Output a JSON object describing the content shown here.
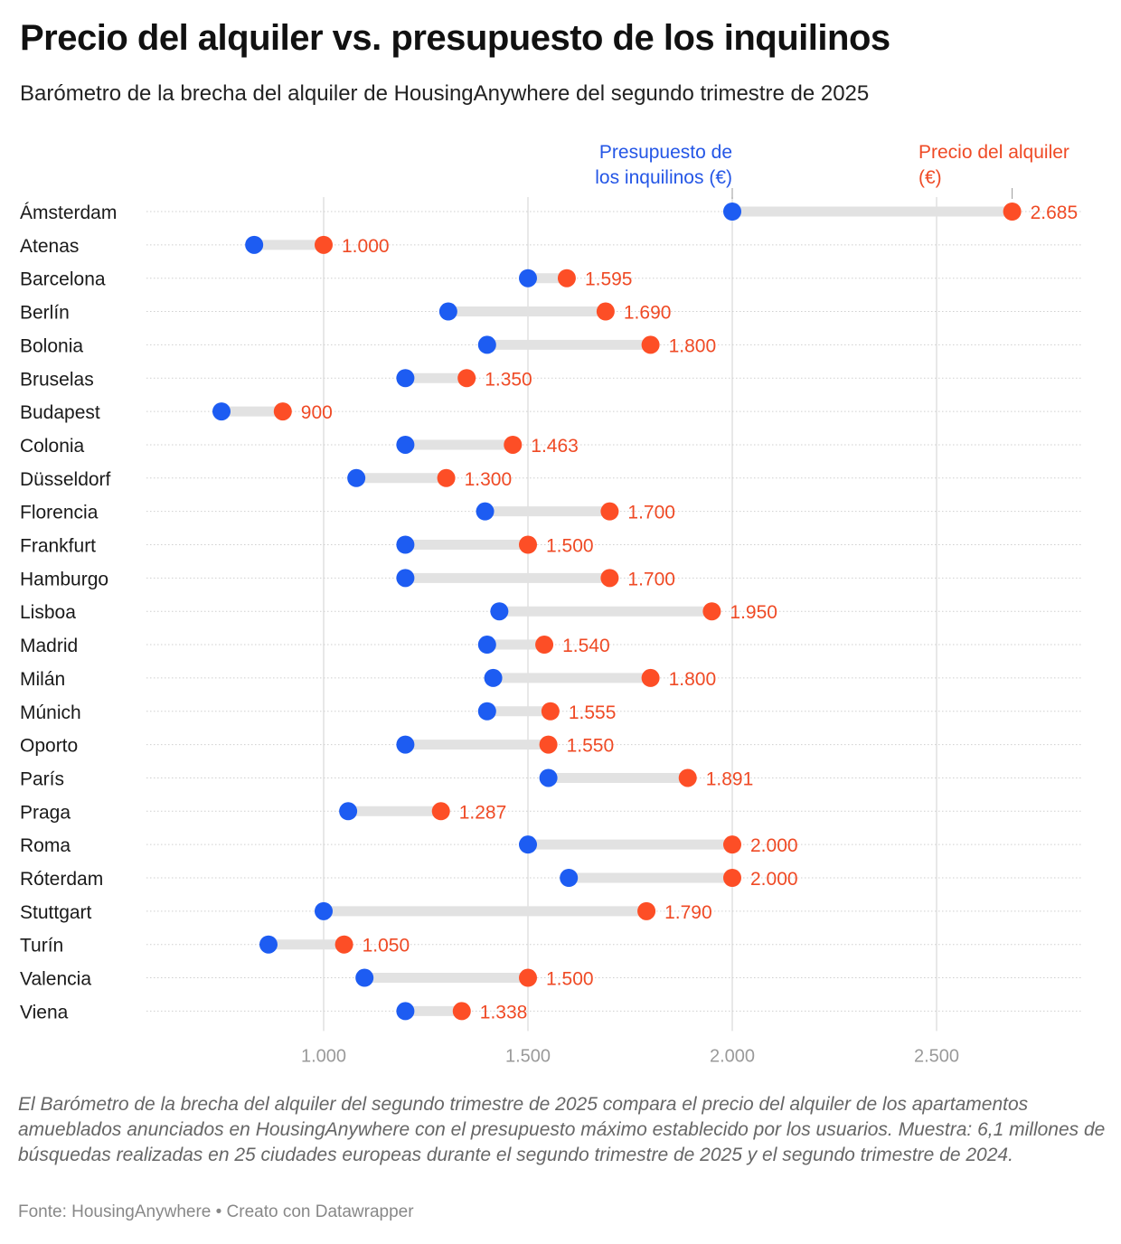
{
  "header": {
    "title": "Precio del alquiler vs. presupuesto de los inquilinos",
    "subtitle": "Barómetro de la brecha del alquiler de HousingAnywhere del segundo trimestre de 2025"
  },
  "footer": {
    "notes": "El Barómetro de la brecha del alquiler del segundo trimestre de 2025 compara el precio del alquiler de los apartamentos amueblados anunciados en HousingAnywhere con el presupuesto máximo establecido por los usuarios. Muestra: 6,1 millones de búsquedas realizadas en 25 ciudades europeas durante el segundo trimestre de 2025 y el segundo trimestre de 2024.",
    "source": "Fonte: HousingAnywhere • Creato con Datawrapper"
  },
  "colors": {
    "budget": "#1d5cf2",
    "rent": "#fd4e26",
    "rent_label": "#ef4a25",
    "connector": "#e2e2e2"
  },
  "chart_data": {
    "type": "dot-range",
    "title": "Precio del alquiler vs. presupuesto de los inquilinos",
    "subtitle": "Barómetro de la brecha del alquiler de HousingAnywhere del segundo trimestre de 2025",
    "xlabel": "",
    "ylabel": "",
    "xlim": [
      565,
      2865
    ],
    "xticks": [
      1000,
      1500,
      2000,
      2500
    ],
    "xtick_labels": [
      "1.000",
      "1.500",
      "2.000",
      "2.500"
    ],
    "grid": "vertical",
    "legend": [
      {
        "name": "Presupuesto de los inquilinos (€)",
        "lines": [
          "Presupuesto de",
          "los inquilinos (€)"
        ],
        "color": "#1d5cf2",
        "placement": "top, above first row"
      },
      {
        "name": "Precio del alquiler (€)",
        "lines": [
          "Precio del alquiler",
          "(€)"
        ],
        "color": "#fd4e26",
        "placement": "top, above first row"
      }
    ],
    "categories": [
      "Ámsterdam",
      "Atenas",
      "Barcelona",
      "Berlín",
      "Bolonia",
      "Bruselas",
      "Budapest",
      "Colonia",
      "Düsseldorf",
      "Florencia",
      "Frankfurt",
      "Hamburgo",
      "Lisboa",
      "Madrid",
      "Milán",
      "Múnich",
      "Oporto",
      "París",
      "Praga",
      "Roma",
      "Róterdam",
      "Stuttgart",
      "Turín",
      "Valencia",
      "Viena"
    ],
    "series": [
      {
        "name": "Presupuesto de los inquilinos (€)",
        "values": [
          2000,
          830,
          1500,
          1305,
          1400,
          1200,
          750,
          1200,
          1080,
          1395,
          1200,
          1200,
          1430,
          1400,
          1415,
          1400,
          1200,
          1550,
          1060,
          1500,
          1600,
          1000,
          865,
          1100,
          1200
        ]
      },
      {
        "name": "Precio del alquiler (€)",
        "values": [
          2685,
          1000,
          1595,
          1690,
          1800,
          1350,
          900,
          1463,
          1300,
          1700,
          1500,
          1700,
          1950,
          1540,
          1800,
          1555,
          1550,
          1891,
          1287,
          2000,
          2000,
          1790,
          1050,
          1500,
          1338
        ],
        "labels": [
          "2.685",
          "1.000",
          "1.595",
          "1.690",
          "1.800",
          "1.350",
          "900",
          "1.463",
          "1.300",
          "1.700",
          "1.500",
          "1.700",
          "1.950",
          "1.540",
          "1.800",
          "1.555",
          "1.550",
          "1.891",
          "1.287",
          "2.000",
          "2.000",
          "1.790",
          "1.050",
          "1.500",
          "1.338"
        ]
      }
    ]
  }
}
